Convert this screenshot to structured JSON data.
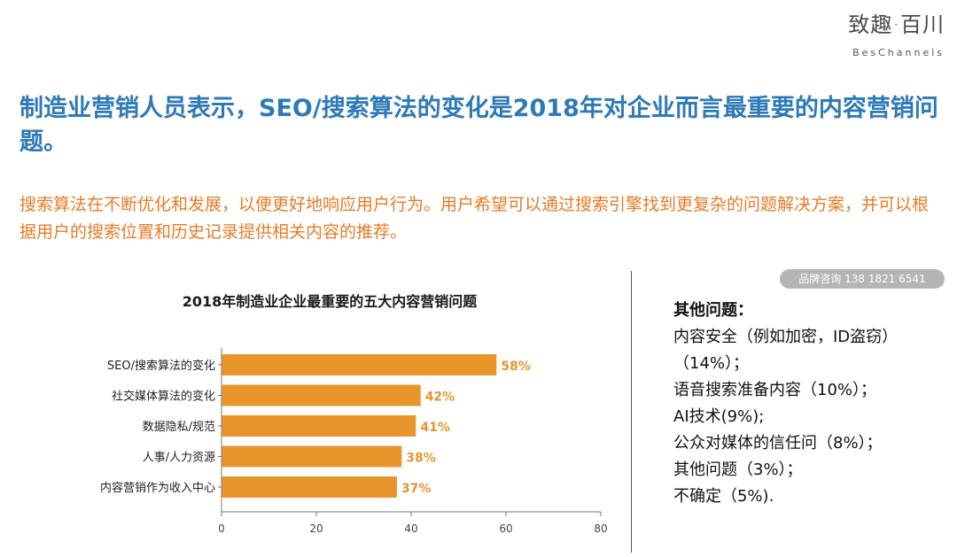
{
  "logo": {
    "cn": "致趣·百川",
    "en": "BesChannels"
  },
  "headline": "制造业营销人员表示，SEO/搜索算法的变化是2018年对企业而言最重要的内容营销问题。",
  "subtext": "搜索算法在不断优化和发展，以便更好地响应用户行为。用户希望可以通过搜索引擎找到更复杂的问题解决方案，并可以根据用户的搜索位置和历史记录提供相关内容的推荐。",
  "watermark": "品牌咨询 138 1821 6541",
  "side": {
    "title": "其他问题：",
    "items": [
      "内容安全（例如加密，ID盗窃）（14%）；",
      "语音搜索准备内容（10%）；",
      "AI技术(9%);",
      "公众对媒体的信任问（8%）；",
      "其他问题（3%）；",
      "不确定（5%)."
    ]
  },
  "chart_data": {
    "type": "bar",
    "orientation": "horizontal",
    "title": "2018年制造业企业最重要的五大内容营销问题",
    "categories": [
      "SEO/搜索算法的变化",
      "社交媒体算法的变化",
      "数据隐私/规范",
      "人事/人力资源",
      "内容营销作为收入中心"
    ],
    "values": [
      58,
      42,
      41,
      38,
      37
    ],
    "value_labels": [
      "58%",
      "42%",
      "41%",
      "38%",
      "37%"
    ],
    "xlim": [
      0,
      80
    ],
    "xticks": [
      "0",
      "20",
      "40",
      "60",
      "80"
    ],
    "bar_color": "#e8952c",
    "label_color": "#e8952c",
    "grid": false
  }
}
